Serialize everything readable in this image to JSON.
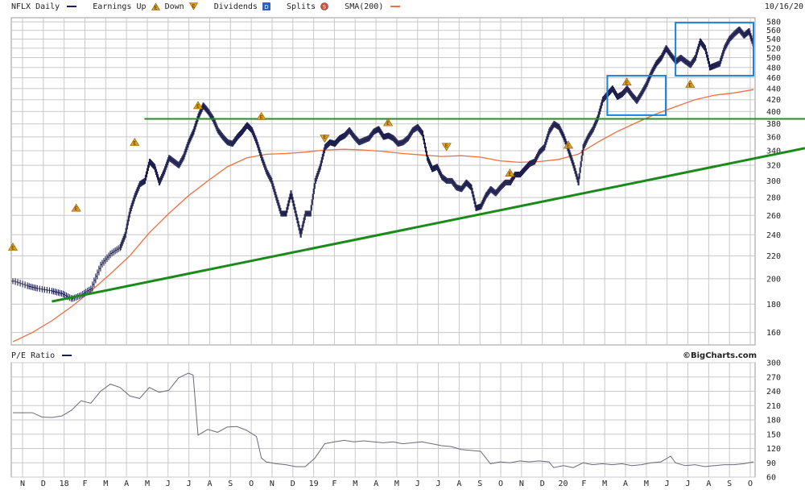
{
  "header": {
    "symbol_label": "NFLX Daily",
    "earnings_up_label": "Earnings Up",
    "down_label": "Down",
    "dividends_label": "Dividends",
    "splits_label": "Splits",
    "sma_label": "SMA(200)",
    "date": "10/16/20"
  },
  "lower_panel": {
    "label": "P/E Ratio"
  },
  "branding": "©BigCharts.com",
  "colors": {
    "price_bars": "#1f1f4f",
    "sma": "#f07040",
    "trendline": "#1a8a1a",
    "resistance": "#2a8a2a",
    "boxes": "#1e7fd6",
    "grid": "#c8c8c8",
    "earnings": "#e0a020",
    "dividends": "#2060d0",
    "splits": "#d05040"
  },
  "chart_data": [
    {
      "type": "ohlc",
      "title": "NFLX Daily",
      "series_name": "NFLX Daily",
      "overlay_name": "SMA(200)",
      "x_tick_labels": [
        "N",
        "D",
        "18",
        "F",
        "M",
        "A",
        "M",
        "J",
        "J",
        "A",
        "S",
        "O",
        "N",
        "D",
        "19",
        "F",
        "M",
        "A",
        "M",
        "J",
        "J",
        "A",
        "S",
        "O",
        "N",
        "D",
        "20",
        "F",
        "M",
        "A",
        "M",
        "J",
        "J",
        "A",
        "S",
        "O"
      ],
      "y_tick_labels": [
        "580",
        "560",
        "540",
        "520",
        "500",
        "480",
        "460",
        "440",
        "420",
        "400",
        "380",
        "360",
        "340",
        "320",
        "300",
        "280",
        "260",
        "240",
        "220",
        "200",
        "180",
        "160"
      ],
      "ylim": [
        152,
        590
      ],
      "y_scale": "log",
      "grid": true,
      "close_series": [
        [
          0,
          198
        ],
        [
          3,
          194
        ],
        [
          5,
          192
        ],
        [
          8,
          190
        ],
        [
          10,
          188
        ],
        [
          12,
          184
        ],
        [
          14,
          187
        ],
        [
          16,
          192
        ],
        [
          18,
          212
        ],
        [
          20,
          222
        ],
        [
          22,
          228
        ],
        [
          23,
          240
        ],
        [
          24,
          265
        ],
        [
          25,
          282
        ],
        [
          26,
          296
        ],
        [
          27,
          300
        ],
        [
          28,
          325
        ],
        [
          29,
          318
        ],
        [
          30,
          298
        ],
        [
          31,
          312
        ],
        [
          32,
          330
        ],
        [
          33,
          325
        ],
        [
          34,
          320
        ],
        [
          35,
          332
        ],
        [
          36,
          352
        ],
        [
          37,
          368
        ],
        [
          38,
          392
        ],
        [
          39,
          410
        ],
        [
          40,
          400
        ],
        [
          41,
          388
        ],
        [
          42,
          370
        ],
        [
          43,
          360
        ],
        [
          44,
          352
        ],
        [
          45,
          350
        ],
        [
          46,
          360
        ],
        [
          47,
          368
        ],
        [
          48,
          378
        ],
        [
          49,
          370
        ],
        [
          50,
          352
        ],
        [
          51,
          330
        ],
        [
          52,
          312
        ],
        [
          53,
          300
        ],
        [
          54,
          280
        ],
        [
          55,
          262
        ],
        [
          56,
          262
        ],
        [
          57,
          285
        ],
        [
          58,
          262
        ],
        [
          59,
          240
        ],
        [
          60,
          262
        ],
        [
          61,
          262
        ],
        [
          62,
          300
        ],
        [
          63,
          318
        ],
        [
          64,
          345
        ],
        [
          65,
          352
        ],
        [
          66,
          350
        ],
        [
          67,
          358
        ],
        [
          68,
          362
        ],
        [
          69,
          370
        ],
        [
          70,
          360
        ],
        [
          71,
          352
        ],
        [
          72,
          355
        ],
        [
          73,
          358
        ],
        [
          74,
          368
        ],
        [
          75,
          372
        ],
        [
          76,
          360
        ],
        [
          77,
          362
        ],
        [
          78,
          358
        ],
        [
          79,
          350
        ],
        [
          80,
          352
        ],
        [
          81,
          358
        ],
        [
          82,
          370
        ],
        [
          83,
          375
        ],
        [
          84,
          365
        ],
        [
          85,
          330
        ],
        [
          86,
          315
        ],
        [
          87,
          318
        ],
        [
          88,
          305
        ],
        [
          89,
          300
        ],
        [
          90,
          300
        ],
        [
          91,
          292
        ],
        [
          92,
          290
        ],
        [
          93,
          298
        ],
        [
          94,
          292
        ],
        [
          95,
          268
        ],
        [
          96,
          270
        ],
        [
          97,
          282
        ],
        [
          98,
          290
        ],
        [
          99,
          285
        ],
        [
          100,
          292
        ],
        [
          101,
          298
        ],
        [
          102,
          298
        ],
        [
          103,
          308
        ],
        [
          104,
          308
        ],
        [
          105,
          315
        ],
        [
          106,
          322
        ],
        [
          107,
          325
        ],
        [
          108,
          338
        ],
        [
          109,
          345
        ],
        [
          110,
          368
        ],
        [
          111,
          380
        ],
        [
          112,
          375
        ],
        [
          113,
          360
        ],
        [
          114,
          340
        ],
        [
          115,
          320
        ],
        [
          116,
          298
        ],
        [
          117,
          345
        ],
        [
          118,
          360
        ],
        [
          119,
          372
        ],
        [
          120,
          390
        ],
        [
          121,
          420
        ],
        [
          122,
          430
        ],
        [
          123,
          440
        ],
        [
          124,
          425
        ],
        [
          125,
          430
        ],
        [
          126,
          440
        ],
        [
          127,
          428
        ],
        [
          128,
          418
        ],
        [
          129,
          432
        ],
        [
          130,
          448
        ],
        [
          131,
          470
        ],
        [
          132,
          488
        ],
        [
          133,
          500
        ],
        [
          134,
          520
        ],
        [
          135,
          505
        ],
        [
          136,
          492
        ],
        [
          137,
          500
        ],
        [
          138,
          492
        ],
        [
          139,
          485
        ],
        [
          140,
          500
        ],
        [
          141,
          535
        ],
        [
          142,
          520
        ],
        [
          143,
          480
        ],
        [
          144,
          484
        ],
        [
          145,
          488
        ],
        [
          146,
          520
        ],
        [
          147,
          540
        ],
        [
          148,
          552
        ],
        [
          149,
          562
        ],
        [
          150,
          548
        ],
        [
          151,
          558
        ],
        [
          152,
          525
        ]
      ],
      "sma200_series": [
        [
          0,
          154
        ],
        [
          4,
          160
        ],
        [
          8,
          168
        ],
        [
          12,
          178
        ],
        [
          16,
          190
        ],
        [
          20,
          204
        ],
        [
          24,
          220
        ],
        [
          28,
          242
        ],
        [
          32,
          262
        ],
        [
          36,
          282
        ],
        [
          40,
          300
        ],
        [
          44,
          318
        ],
        [
          48,
          330
        ],
        [
          52,
          335
        ],
        [
          56,
          336
        ],
        [
          60,
          338
        ],
        [
          64,
          341
        ],
        [
          68,
          342
        ],
        [
          72,
          341
        ],
        [
          76,
          339
        ],
        [
          80,
          336
        ],
        [
          84,
          334
        ],
        [
          88,
          332
        ],
        [
          92,
          333
        ],
        [
          96,
          331
        ],
        [
          100,
          326
        ],
        [
          104,
          324
        ],
        [
          108,
          325
        ],
        [
          112,
          328
        ],
        [
          116,
          335
        ],
        [
          120,
          352
        ],
        [
          124,
          368
        ],
        [
          128,
          382
        ],
        [
          132,
          396
        ],
        [
          136,
          408
        ],
        [
          140,
          420
        ],
        [
          144,
          428
        ],
        [
          148,
          432
        ],
        [
          152,
          438
        ]
      ],
      "trendline": [
        [
          8,
          182
        ],
        [
          152,
          329
        ]
      ],
      "resistance_level": 388,
      "highlight_boxes": [
        {
          "x": [
            122,
            134
          ],
          "y": [
            394,
            464
          ]
        },
        {
          "x": [
            136,
            152
          ],
          "y": [
            464,
            578
          ]
        }
      ],
      "earnings_markers": [
        {
          "x": 0,
          "y": 228,
          "dir": "up"
        },
        {
          "x": 13,
          "y": 268,
          "dir": "up"
        },
        {
          "x": 25,
          "y": 352,
          "dir": "up"
        },
        {
          "x": 38,
          "y": 410,
          "dir": "up"
        },
        {
          "x": 51,
          "y": 392,
          "dir": "up"
        },
        {
          "x": 64,
          "y": 358,
          "dir": "down"
        },
        {
          "x": 77,
          "y": 382,
          "dir": "up"
        },
        {
          "x": 89,
          "y": 346,
          "dir": "down"
        },
        {
          "x": 102,
          "y": 310,
          "dir": "up"
        },
        {
          "x": 114,
          "y": 348,
          "dir": "up"
        },
        {
          "x": 126,
          "y": 452,
          "dir": "up"
        },
        {
          "x": 139,
          "y": 448,
          "dir": "up"
        }
      ]
    },
    {
      "type": "line",
      "title": "P/E Ratio",
      "series_name": "P/E Ratio",
      "y_tick_labels": [
        "300",
        "270",
        "240",
        "210",
        "180",
        "150",
        "120",
        "90",
        "60"
      ],
      "ylim": [
        60,
        300
      ],
      "grid": true,
      "series": [
        [
          0,
          195
        ],
        [
          4,
          195
        ],
        [
          6,
          186
        ],
        [
          8,
          185
        ],
        [
          10,
          188
        ],
        [
          12,
          200
        ],
        [
          14,
          220
        ],
        [
          16,
          215
        ],
        [
          18,
          240
        ],
        [
          20,
          255
        ],
        [
          22,
          248
        ],
        [
          24,
          230
        ],
        [
          26,
          225
        ],
        [
          28,
          248
        ],
        [
          30,
          238
        ],
        [
          32,
          242
        ],
        [
          34,
          268
        ],
        [
          36,
          278
        ],
        [
          37,
          274
        ],
        [
          38,
          148
        ],
        [
          40,
          160
        ],
        [
          42,
          154
        ],
        [
          44,
          165
        ],
        [
          46,
          166
        ],
        [
          48,
          158
        ],
        [
          50,
          145
        ],
        [
          51,
          100
        ],
        [
          52,
          92
        ],
        [
          54,
          88
        ],
        [
          56,
          86
        ],
        [
          58,
          82
        ],
        [
          60,
          82
        ],
        [
          62,
          100
        ],
        [
          64,
          130
        ],
        [
          66,
          134
        ],
        [
          68,
          137
        ],
        [
          70,
          134
        ],
        [
          72,
          136
        ],
        [
          74,
          134
        ],
        [
          76,
          132
        ],
        [
          78,
          134
        ],
        [
          80,
          130
        ],
        [
          82,
          132
        ],
        [
          84,
          134
        ],
        [
          86,
          130
        ],
        [
          88,
          126
        ],
        [
          90,
          124
        ],
        [
          92,
          118
        ],
        [
          94,
          116
        ],
        [
          96,
          114
        ],
        [
          98,
          88
        ],
        [
          100,
          92
        ],
        [
          102,
          90
        ],
        [
          104,
          94
        ],
        [
          106,
          92
        ],
        [
          108,
          94
        ],
        [
          110,
          92
        ],
        [
          111,
          80
        ],
        [
          113,
          84
        ],
        [
          115,
          80
        ],
        [
          117,
          90
        ],
        [
          119,
          86
        ],
        [
          121,
          88
        ],
        [
          123,
          86
        ],
        [
          125,
          88
        ],
        [
          127,
          84
        ],
        [
          129,
          86
        ],
        [
          131,
          90
        ],
        [
          133,
          92
        ],
        [
          135,
          104
        ],
        [
          136,
          90
        ],
        [
          138,
          84
        ],
        [
          140,
          86
        ],
        [
          142,
          82
        ],
        [
          144,
          84
        ],
        [
          146,
          86
        ],
        [
          148,
          86
        ],
        [
          150,
          88
        ],
        [
          152,
          92
        ]
      ]
    }
  ]
}
